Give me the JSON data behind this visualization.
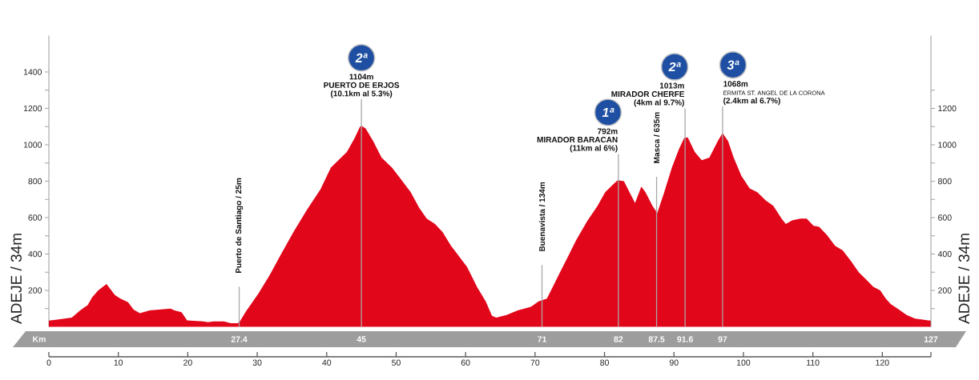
{
  "chart_data": {
    "type": "area",
    "ylabel": "ADEJE / 34m",
    "y2label": "ADEJE / 34m",
    "x2label": "Km",
    "x": [
      0,
      1.2,
      3.3,
      4.5,
      5.6,
      6.2,
      7.1,
      8.3,
      9.5,
      10.3,
      11.4,
      12.2,
      13.1,
      14.5,
      16.0,
      17.5,
      18.1,
      19.1,
      19.9,
      22.2,
      22.9,
      23.7,
      25.2,
      26.2,
      27.2,
      27.5,
      28.3,
      30.2,
      31.8,
      33.3,
      35.2,
      37.1,
      39.1,
      40.6,
      42.9,
      44.0,
      44.8,
      45.0,
      45.6,
      46.7,
      47.9,
      49.4,
      50.6,
      52.1,
      53.3,
      54.4,
      55.6,
      56.7,
      57.9,
      59.0,
      60.2,
      61.7,
      62.9,
      63.8,
      64.4,
      65.9,
      67.5,
      69.4,
      70.5,
      71.7,
      72.5,
      73.6,
      74.8,
      75.9,
      77.5,
      79.0,
      80.1,
      81.3,
      81.9,
      82.8,
      83.6,
      84.4,
      85.3,
      85.9,
      86.9,
      87.6,
      88.6,
      89.7,
      90.7,
      91.5,
      92.0,
      93.0,
      94.0,
      95.1,
      96.3,
      97.0,
      97.8,
      98.6,
      99.7,
      100.9,
      102.0,
      103.2,
      104.3,
      105.5,
      106.1,
      107.0,
      108.2,
      109.1,
      110.1,
      110.9,
      112.0,
      113.2,
      114.3,
      115.5,
      116.6,
      117.8,
      118.7,
      119.7,
      120.5,
      121.2,
      122.4,
      123.5,
      124.7,
      125.8,
      126.6,
      127
    ],
    "values": [
      34,
      40,
      50,
      90,
      120,
      160,
      200,
      235,
      175,
      155,
      135,
      95,
      75,
      90,
      95,
      100,
      90,
      80,
      35,
      30,
      25,
      30,
      30,
      20,
      20,
      30,
      80,
      185,
      285,
      390,
      520,
      640,
      755,
      875,
      960,
      1035,
      1100,
      1104,
      1090,
      1020,
      930,
      875,
      815,
      740,
      655,
      595,
      565,
      520,
      445,
      390,
      330,
      215,
      140,
      60,
      50,
      65,
      90,
      110,
      140,
      155,
      215,
      300,
      390,
      475,
      580,
      665,
      740,
      785,
      805,
      800,
      740,
      680,
      770,
      740,
      665,
      625,
      740,
      875,
      975,
      1040,
      1040,
      960,
      915,
      930,
      1020,
      1065,
      1020,
      930,
      830,
      760,
      740,
      695,
      665,
      595,
      565,
      585,
      595,
      595,
      555,
      550,
      505,
      445,
      420,
      360,
      300,
      255,
      220,
      200,
      155,
      125,
      95,
      65,
      45,
      40,
      35,
      34
    ],
    "color": "#e2061a",
    "xlim": [
      0,
      127
    ],
    "xticks": [
      0,
      10,
      20,
      30,
      40,
      50,
      60,
      70,
      80,
      90,
      100,
      110,
      120,
      {
        "value": 127,
        "label": null
      }
    ],
    "ylim": [
      0,
      1600
    ],
    "yticks": [
      {
        "value": 100,
        "label": null
      },
      200,
      {
        "value": 300,
        "label": null
      },
      400,
      {
        "value": 500,
        "label": null
      },
      600,
      {
        "value": 700,
        "label": null
      },
      800,
      {
        "value": 900,
        "label": null
      },
      1000,
      {
        "value": 1100,
        "label": null
      },
      1200,
      {
        "value": 1300,
        "label": null
      },
      1400
    ],
    "y2lim": [
      0,
      1600
    ],
    "y2ticks": [
      {
        "value": 100,
        "label": null
      },
      200,
      {
        "value": 300,
        "label": null
      },
      400,
      {
        "value": 500,
        "label": null
      },
      600,
      {
        "value": 700,
        "label": null
      },
      800,
      {
        "value": 900,
        "label": null
      },
      1000,
      {
        "value": 1100,
        "label": null
      },
      1200,
      {
        "value": 1300,
        "label": null
      }
    ],
    "x2lim": [
      0,
      127
    ],
    "x2ticks": [
      27.4,
      45,
      71,
      82,
      87.5,
      91.6,
      97,
      127
    ],
    "ref_lines": [
      {
        "axis": "x",
        "value": 27.4,
        "label": "Puerto de Santiago / 25m",
        "color": "#a8a8a8"
      },
      {
        "axis": "x",
        "value": 45,
        "color": "#a8a8a8"
      },
      {
        "axis": "x",
        "value": 71,
        "label": "Buenavista / 134m",
        "color": "#a8a8a8"
      },
      {
        "axis": "x",
        "value": 82,
        "color": "#a8a8a8"
      },
      {
        "axis": "x",
        "value": 87.5,
        "label": "Masca / 635m",
        "color": "#a8a8a8"
      },
      {
        "axis": "x",
        "value": 91.6,
        "color": "#a8a8a8"
      },
      {
        "axis": "x",
        "value": 97,
        "color": "#a8a8a8"
      }
    ],
    "annotations": [
      "2ª",
      "1104m",
      "PUERTO DE ERJOS",
      "(10.1km al 5.3%)",
      "1ª",
      "792m",
      "MIRADOR BARACAN",
      "(11km al 6%)",
      "2ª",
      "1013m",
      "MIRADOR CHERFE",
      "(4km al 9.7%)",
      "3ª",
      "1068m",
      "ERMITA ST. ANGEL DE LA CORONA",
      "(2.4km al 6.7%)"
    ]
  }
}
